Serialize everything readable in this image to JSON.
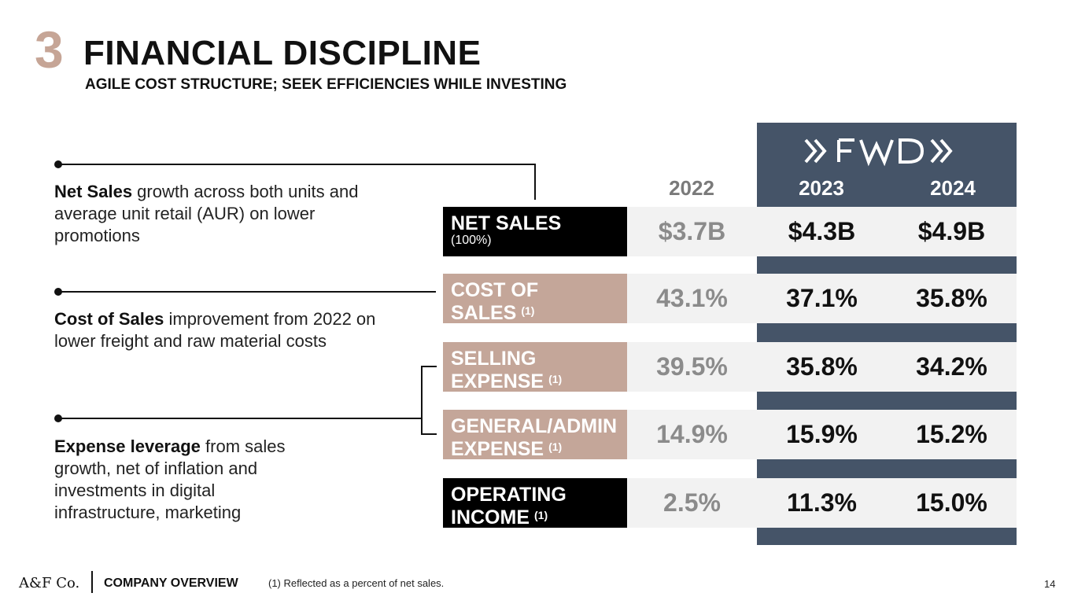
{
  "header": {
    "section_number": "3",
    "title": "FINANCIAL DISCIPLINE",
    "subtitle": "AGILE COST STRUCTURE; SEEK EFFICIENCIES WHILE INVESTING"
  },
  "notes": [
    {
      "bold": "Net Sales",
      "rest": " growth across both units and average unit retail (AUR) on lower promotions"
    },
    {
      "bold": "Cost of Sales",
      "rest": " improvement from 2022 on lower freight and raw material costs"
    },
    {
      "bold": "Expense leverage",
      "rest": " from sales growth, net of inflation and investments in digital infrastructure, marketing"
    }
  ],
  "table": {
    "fwd_logo": "»FWD»",
    "years": [
      "2022",
      "2023",
      "2024"
    ],
    "rows": [
      {
        "label": "NET SALES",
        "sub": "(100%)",
        "note": "",
        "values": [
          "$3.7B",
          "$4.3B",
          "$4.9B"
        ]
      },
      {
        "label": "COST OF SALES",
        "sub": "",
        "note": "(1)",
        "values": [
          "43.1%",
          "37.1%",
          "35.8%"
        ]
      },
      {
        "label": "SELLING EXPENSE",
        "sub": "",
        "note": "(1)",
        "values": [
          "39.5%",
          "35.8%",
          "34.2%"
        ]
      },
      {
        "label": "GENERAL/ADMIN EXPENSE",
        "sub": "",
        "note": "(1)",
        "values": [
          "14.9%",
          "15.9%",
          "15.2%"
        ]
      },
      {
        "label": "OPERATING INCOME",
        "sub": "",
        "note": "(1)",
        "values": [
          "2.5%",
          "11.3%",
          "15.0%"
        ]
      }
    ]
  },
  "footer": {
    "logo": "A&F Co.",
    "company": "COMPANY OVERVIEW",
    "footnote": "(1) Reflected as a percent of net sales.",
    "page": "14"
  }
}
